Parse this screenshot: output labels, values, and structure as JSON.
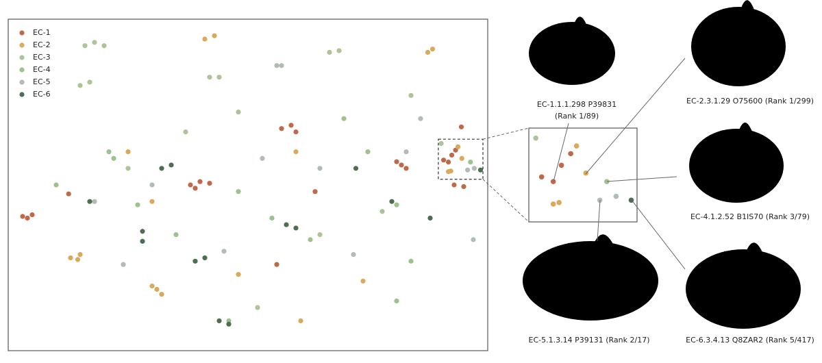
{
  "chart_data": {
    "type": "scatter",
    "xlim": [
      0,
      100
    ],
    "ylim": [
      0,
      100
    ],
    "legend": "upper left",
    "inset": {
      "xlim": [
        89.7,
        99.0
      ],
      "ylim": [
        51.7,
        63.8
      ]
    },
    "series": [
      {
        "name": "EC-1",
        "color": "#c0694a",
        "x": [
          4,
          5,
          3,
          38,
          40,
          42,
          39,
          57,
          59,
          60,
          82,
          83,
          81,
          93,
          95,
          94.5,
          12.6,
          56,
          64,
          91.8,
          90.8,
          92.5,
          93.3
        ],
        "y": [
          40,
          41,
          40.5,
          50,
          51,
          50.5,
          49,
          67,
          68,
          66,
          56,
          55,
          57,
          50,
          49.5,
          67.5,
          47.3,
          26,
          48,
          56.9,
          57.5,
          59,
          60.5
        ]
      },
      {
        "name": "EC-2",
        "color": "#d8aa5a",
        "x": [
          13,
          15,
          14.5,
          30,
          31,
          32,
          41,
          43,
          87.5,
          88.5,
          74,
          61,
          48,
          25,
          60,
          94.6,
          93.8,
          91.8,
          92.3,
          30
        ],
        "y": [
          28,
          29,
          27.5,
          19.5,
          18.5,
          17,
          94,
          95,
          90,
          91,
          21,
          9,
          23,
          60,
          60,
          58,
          61.5,
          54,
          54.2,
          45
        ]
      },
      {
        "name": "EC-3",
        "color": "#aec399",
        "x": [
          16,
          18,
          20,
          17,
          15,
          67,
          69,
          42,
          44,
          48,
          84,
          37,
          78,
          52,
          25,
          65,
          90.3
        ],
        "y": [
          92,
          93,
          92,
          81,
          80,
          90,
          90.5,
          82.5,
          82.5,
          72,
          77,
          66,
          42,
          13,
          55,
          35,
          62.5
        ]
      },
      {
        "name": "EC-4",
        "color": "#9dc28d",
        "x": [
          21,
          22,
          48,
          27,
          81,
          63,
          84,
          81,
          46,
          10,
          70,
          96.4,
          55,
          35,
          75
        ],
        "y": [
          60,
          58,
          48,
          44,
          44,
          33.5,
          27,
          15,
          9,
          50,
          70,
          56.9,
          40,
          35,
          60
        ]
      },
      {
        "name": "EC-5",
        "color": "#b2bcb3",
        "x": [
          56,
          57,
          24,
          97,
          72,
          53,
          83,
          86,
          30,
          65,
          95.8,
          97.2,
          45,
          18
        ],
        "y": [
          86,
          86,
          26,
          33.5,
          29,
          58,
          60,
          70,
          50,
          55,
          54.5,
          55,
          30,
          45
        ]
      },
      {
        "name": "EC-6",
        "color": "#4e6e54",
        "x": [
          32,
          34,
          28,
          28,
          39,
          41,
          44,
          46,
          58,
          60,
          72.5,
          80,
          88,
          17,
          98.5
        ],
        "y": [
          55,
          56,
          36,
          33,
          27,
          28,
          9,
          8,
          38,
          37,
          55,
          45,
          40,
          45,
          54.5
        ]
      }
    ],
    "annotations": [
      "EC-1.1.1.298 P39831",
      "(Rank 1/89)",
      "EC-2.3.1.29 O75600 (Rank 1/299)",
      "EC-4.1.2.52 B1IS70 (Rank 3/79)",
      "EC-5.1.3.14 P39131 (Rank 2/17)",
      "EC-6.3.4.13 Q8ZAR2 (Rank 5/417)"
    ]
  }
}
